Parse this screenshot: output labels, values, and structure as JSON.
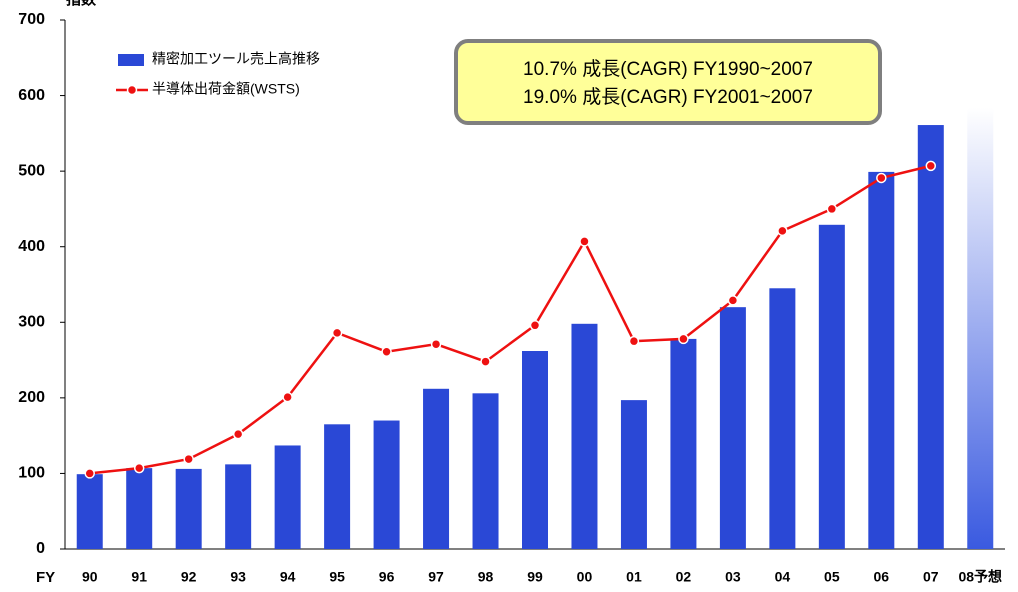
{
  "chart_data": {
    "type": "bar_line",
    "ylabel": "指数",
    "xlabel": "FY",
    "categories": [
      "90",
      "91",
      "92",
      "93",
      "94",
      "95",
      "96",
      "97",
      "98",
      "99",
      "00",
      "01",
      "02",
      "03",
      "04",
      "05",
      "06",
      "07",
      "08予想"
    ],
    "series": [
      {
        "name": "精密加工ツール売上高推移",
        "type": "bar",
        "color": "#2a48d6",
        "colors": [
          "#2a48d6",
          "#2a48d6",
          "#2a48d6",
          "#2a48d6",
          "#2a48d6",
          "#2a48d6",
          "#2a48d6",
          "#2a48d6",
          "#2a48d6",
          "#2a48d6",
          "#2a48d6",
          "#2a48d6",
          "#2a48d6",
          "#2a48d6",
          "#2a48d6",
          "#2a48d6",
          "#2a48d6",
          "#2a48d6",
          "#c9d3f7"
        ],
        "values": [
          99,
          107,
          106,
          112,
          137,
          165,
          170,
          212,
          206,
          262,
          298,
          197,
          278,
          320,
          345,
          429,
          499,
          561,
          584
        ]
      },
      {
        "name": "半導体出荷金額(WSTS)",
        "type": "line",
        "color": "#ee1111",
        "values": [
          100,
          107,
          119,
          152,
          201,
          286,
          261,
          271,
          248,
          296,
          407,
          275,
          278,
          329,
          421,
          450,
          491,
          507,
          null
        ]
      }
    ],
    "annotations": [
      "10.7% 成長(CAGR) FY1990~2007",
      "19.0% 成長(CAGR) FY2001~2007"
    ],
    "ylim": [
      0,
      700
    ],
    "yticks": [
      0,
      100,
      200,
      300,
      400,
      500,
      600,
      700
    ]
  }
}
